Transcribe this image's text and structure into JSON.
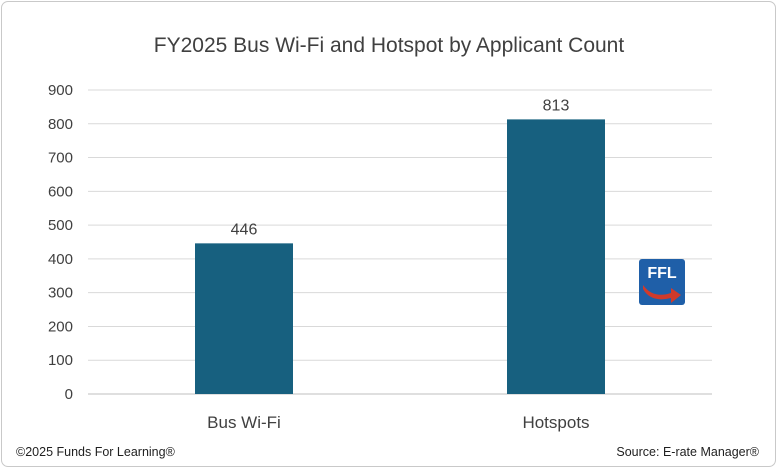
{
  "chart_data": {
    "type": "bar",
    "title": "FY2025 Bus Wi-Fi and Hotspot by Applicant Count",
    "categories": [
      "Bus Wi-Fi",
      "Hotspots"
    ],
    "values": [
      446,
      813
    ],
    "data_labels": [
      "446",
      "813"
    ],
    "ylim": [
      0,
      900
    ],
    "yticks": [
      0,
      100,
      200,
      300,
      400,
      500,
      600,
      700,
      800,
      900
    ],
    "xlabel": "",
    "ylabel": "",
    "grid": true,
    "legend": "none",
    "bar_color": "#17607f"
  },
  "footer": {
    "copyright": "©2025 Funds For Learning®",
    "source": "Source: E-rate Manager®"
  },
  "logo": {
    "text": "FFL",
    "colors": {
      "background": "#1f5fa8",
      "arrow": "#d03a2b",
      "text": "#ffffff"
    }
  }
}
